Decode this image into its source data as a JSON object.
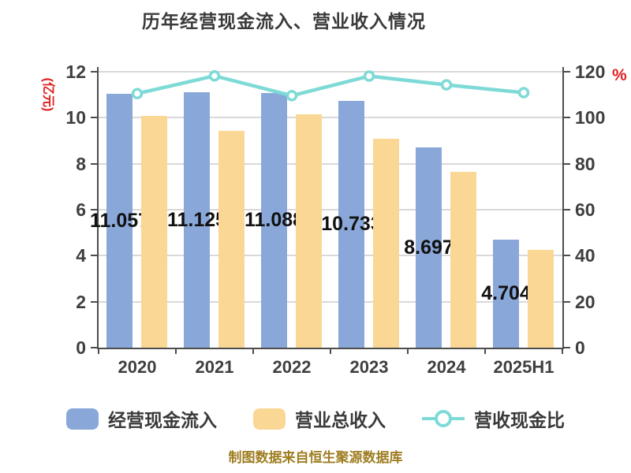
{
  "title": "历年经营现金流入、营业收入情况",
  "footer": "制图数据来自恒生聚源数据库",
  "colors": {
    "bar_blue": "#8aa7d9",
    "bar_orange": "#fbd795",
    "line_teal": "#7edad6",
    "axis_unit_red": "#e02020",
    "grid_gray": "#d9d9d9",
    "axis_gray": "#4d4d4d",
    "footer_gold": "#9e7d20",
    "title_gray": "#3a3a3a"
  },
  "chart_data": {
    "type": "bar",
    "title": "历年经营现金流入、营业收入情况",
    "categories": [
      "2020",
      "2021",
      "2022",
      "2023",
      "2024",
      "2025H1"
    ],
    "series": [
      {
        "name": "经营现金流入",
        "type": "bar",
        "axis": "left",
        "color": "#8aa7d9",
        "values": [
          11.057,
          11.125,
          11.088,
          10.733,
          8.697,
          4.704
        ],
        "value_labels": [
          "11.057",
          "11.125",
          "11.088",
          "10.733",
          "8.697",
          "4.704"
        ]
      },
      {
        "name": "营业总收入",
        "type": "bar",
        "axis": "left",
        "color": "#fbd795",
        "values": [
          10.09,
          9.44,
          10.14,
          9.09,
          7.64,
          4.25
        ]
      },
      {
        "name": "营收现金比",
        "type": "line",
        "axis": "right",
        "color": "#7edad6",
        "values": [
          110.5,
          118.2,
          109.6,
          118.1,
          114.3,
          110.9
        ]
      }
    ],
    "left_axis": {
      "unit": "(亿元)",
      "min": 0,
      "max": 12,
      "step": 2,
      "ticks": [
        0,
        2,
        4,
        6,
        8,
        10,
        12
      ]
    },
    "right_axis": {
      "unit": "%",
      "min": 0,
      "max": 120,
      "step": 20,
      "ticks": [
        0,
        20,
        40,
        60,
        80,
        100,
        120
      ]
    },
    "grid": true,
    "legend_position": "bottom"
  }
}
